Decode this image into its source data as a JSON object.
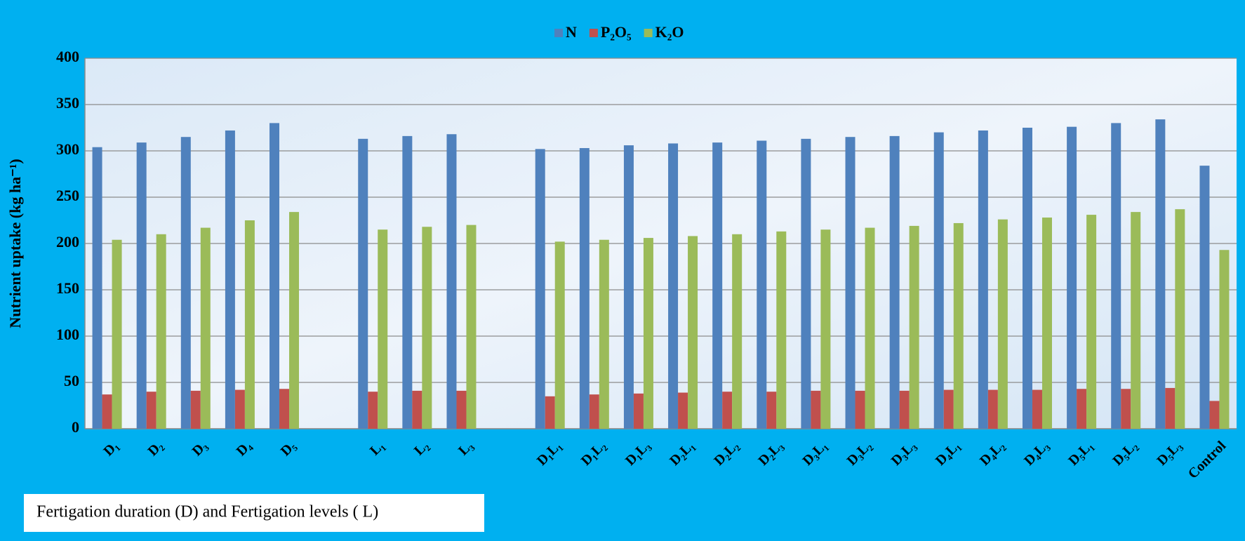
{
  "chart_data": {
    "type": "bar",
    "y_label": "Nutrient uptake (kg  ha⁻¹)",
    "x_label": "Fertigation duration (D) and Fertigation levels ( L)",
    "categories": [
      "D₁",
      "D₂",
      "D₃",
      "D₄",
      "D₅",
      null,
      "L₁",
      "L₂",
      "L₃",
      null,
      "D₁L₁",
      "D₁L₂",
      "D₁L₃",
      "D₂L₁",
      "D₂L₂",
      "D₂L₃",
      "D₃L₁",
      "D₃L₂",
      "D₃L₃",
      "D₄L₁",
      "D₄L₂",
      "D₄L₃",
      "D₅L₁",
      "D₅L₂",
      "D₅L₃",
      "Control"
    ],
    "series": [
      {
        "name": "N",
        "color": "#4f81bd",
        "values": [
          304,
          309,
          315,
          322,
          330,
          null,
          313,
          316,
          318,
          null,
          302,
          303,
          306,
          308,
          309,
          311,
          313,
          315,
          316,
          320,
          322,
          325,
          326,
          330,
          334,
          284
        ]
      },
      {
        "name": "P₂O₅",
        "color": "#c0504d",
        "values": [
          37,
          40,
          41,
          42,
          43,
          null,
          40,
          41,
          41,
          null,
          35,
          37,
          38,
          39,
          40,
          40,
          41,
          41,
          41,
          42,
          42,
          42,
          43,
          43,
          44,
          30
        ]
      },
      {
        "name": "K₂O",
        "color": "#9bbb59",
        "values": [
          204,
          210,
          217,
          225,
          234,
          null,
          215,
          218,
          220,
          null,
          202,
          204,
          206,
          208,
          210,
          213,
          215,
          217,
          219,
          222,
          226,
          228,
          231,
          234,
          237,
          193
        ]
      }
    ],
    "ylim": [
      0,
      400
    ],
    "yticks": [
      0,
      50,
      100,
      150,
      200,
      250,
      300,
      350,
      400
    ],
    "grid": true,
    "legend": "top"
  }
}
